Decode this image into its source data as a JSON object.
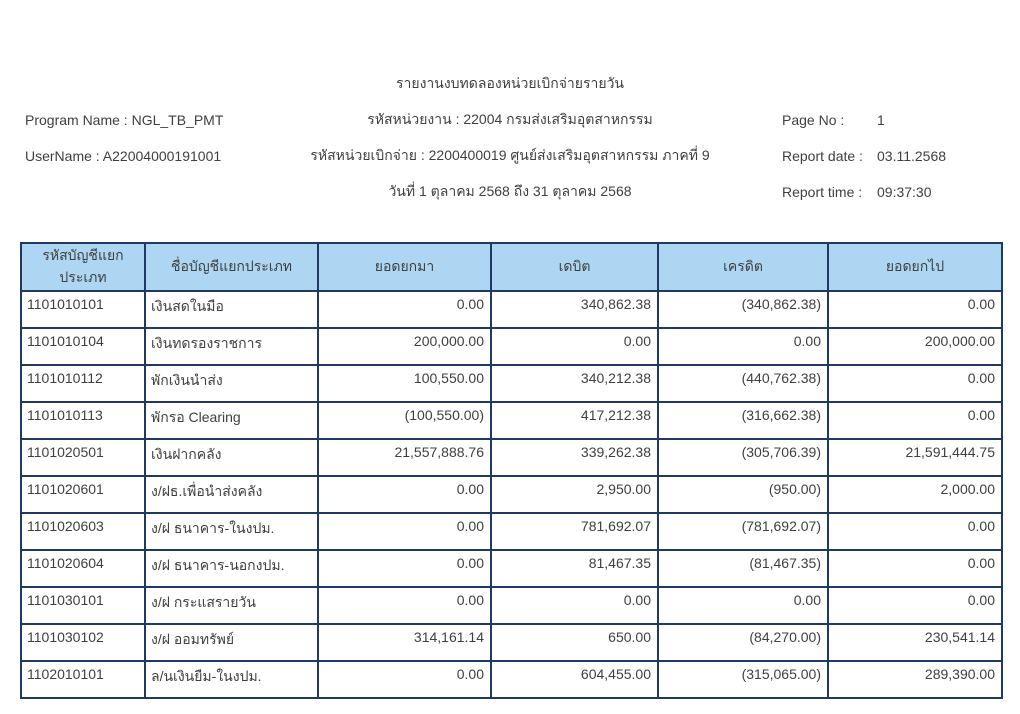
{
  "header": {
    "title": "รายงานงบทดลองหน่วยเบิกจ่ายรายวัน",
    "left": {
      "program_name": "Program Name : NGL_TB_PMT",
      "user_name": "UserName : A22004000191001"
    },
    "center": {
      "agency": "รหัสหน่วยงาน : 22004 กรมส่งเสริมอุตสาหกรรม",
      "disbursement_unit": "รหัสหน่วยเบิกจ่าย : 2200400019 ศูนย์ส่งเสริมอุตสาหกรรม ภาคที่ 9",
      "date_range": "วันที่ 1 ตุลาคม 2568 ถึง 31 ตุลาคม 2568"
    },
    "right": {
      "page_no_label": "Page No :",
      "page_no": "1",
      "report_date_label": "Report date :",
      "report_date": "03.11.2568",
      "report_time_label": "Report time :",
      "report_time": "09:37:30"
    }
  },
  "table": {
    "columns": [
      "รหัสบัญชีแยกประเภท",
      "ชื่อบัญชีแยกประเภท",
      "ยอดยกมา",
      "เดบิต",
      "เครดิต",
      "ยอดยกไป"
    ],
    "rows": [
      [
        "1101010101",
        "เงินสดในมือ",
        "0.00",
        "340,862.38",
        "(340,862.38)",
        "0.00"
      ],
      [
        "1101010104",
        "เงินทดรองราชการ",
        "200,000.00",
        "0.00",
        "0.00",
        "200,000.00"
      ],
      [
        "1101010112",
        "พักเงินนำส่ง",
        "100,550.00",
        "340,212.38",
        "(440,762.38)",
        "0.00"
      ],
      [
        "1101010113",
        "พักรอ Clearing",
        "(100,550.00)",
        "417,212.38",
        "(316,662.38)",
        "0.00"
      ],
      [
        "1101020501",
        "เงินฝากคลัง",
        "21,557,888.76",
        "339,262.38",
        "(305,706.39)",
        "21,591,444.75"
      ],
      [
        "1101020601",
        "ง/ฝธ.เพื่อนำส่งคลัง",
        "0.00",
        "2,950.00",
        "(950.00)",
        "2,000.00"
      ],
      [
        "1101020603",
        "ง/ฝ ธนาคาร-ในงปม.",
        "0.00",
        "781,692.07",
        "(781,692.07)",
        "0.00"
      ],
      [
        "1101020604",
        "ง/ฝ ธนาคาร-นอกงปม.",
        "0.00",
        "81,467.35",
        "(81,467.35)",
        "0.00"
      ],
      [
        "1101030101",
        "ง/ฝ กระแสรายวัน",
        "0.00",
        "0.00",
        "0.00",
        "0.00"
      ],
      [
        "1101030102",
        "ง/ฝ ออมทรัพย์",
        "314,161.14",
        "650.00",
        "(84,270.00)",
        "230,541.14"
      ],
      [
        "1102010101",
        "ล/นเงินยืม-ในงปม.",
        "0.00",
        "604,455.00",
        "(315,065.00)",
        "289,390.00"
      ]
    ]
  },
  "colors": {
    "table_header_bg": "#add6f2",
    "table_border": "#1f3864",
    "text": "#3f3f3f",
    "page_bg": "#ffffff"
  }
}
